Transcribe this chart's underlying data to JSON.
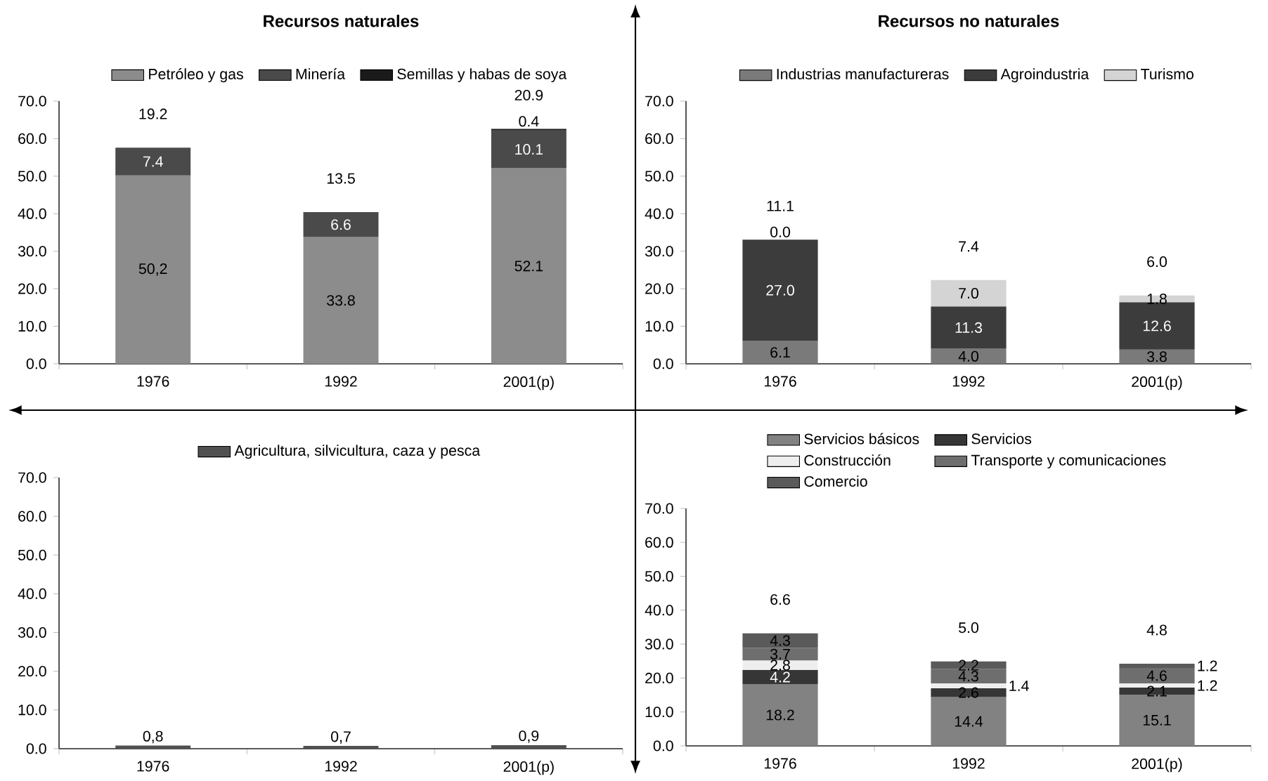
{
  "chart_data": [
    {
      "type": "bar",
      "title": "Recursos naturales",
      "stacked": true,
      "legend": "top",
      "categories": [
        "1976",
        "1992",
        "2001(p)"
      ],
      "ylim": [
        0,
        70
      ],
      "yticks": [
        {
          "value": 0,
          "label": "0.0"
        },
        {
          "value": 10,
          "label": "10.0"
        },
        {
          "value": 20,
          "label": "20.0"
        },
        {
          "value": 30,
          "label": "30.0"
        },
        {
          "value": 40,
          "label": "40.0"
        },
        {
          "value": 50,
          "label": "50.0"
        },
        {
          "value": 60,
          "label": "60.0"
        },
        {
          "value": 70,
          "label": "70.0"
        }
      ],
      "series": [
        {
          "name": "Petróleo y gas",
          "color": "#8c8c8c",
          "values": [
            50.2,
            33.8,
            52.1
          ],
          "value_labels": [
            "50,2",
            "33.8",
            "52.1"
          ]
        },
        {
          "name": "Minería",
          "color": "#4a4a4a",
          "values": [
            7.4,
            6.6,
            10.1
          ],
          "value_labels": [
            "7.4",
            "6.6",
            "10.1"
          ]
        },
        {
          "name": "Semillas y habas de soya",
          "color": "#1a1a1a",
          "values": [
            null,
            null,
            0.4
          ],
          "value_labels": [
            null,
            null,
            "0.4"
          ]
        }
      ],
      "annotations": [
        "19.2",
        "13.5",
        "20.9"
      ]
    },
    {
      "type": "bar",
      "title": "Recursos no naturales",
      "stacked": true,
      "legend": "top",
      "categories": [
        "1976",
        "1992",
        "2001(p)"
      ],
      "ylim": [
        0,
        70
      ],
      "yticks": [
        {
          "value": 0,
          "label": "0.0"
        },
        {
          "value": 10,
          "label": "10.0"
        },
        {
          "value": 20,
          "label": "20.0"
        },
        {
          "value": 30,
          "label": "30.0"
        },
        {
          "value": 40,
          "label": "40.0"
        },
        {
          "value": 50,
          "label": "50.0"
        },
        {
          "value": 60,
          "label": "60.0"
        },
        {
          "value": 70,
          "label": "70.0"
        }
      ],
      "series": [
        {
          "name": "Industrias manufactureras",
          "color": "#7a7a7a",
          "values": [
            6.1,
            4.0,
            3.8
          ],
          "value_labels": [
            "6.1",
            "4.0",
            "3.8"
          ]
        },
        {
          "name": "Agroindustria",
          "color": "#3c3c3c",
          "values": [
            27.0,
            11.3,
            12.6
          ],
          "value_labels": [
            "27.0",
            "11.3",
            "12.6"
          ]
        },
        {
          "name": "Turismo",
          "color": "#d4d4d4",
          "values": [
            0.0,
            7.0,
            1.8
          ],
          "value_labels": [
            "0.0",
            "7.0",
            "1.8"
          ]
        }
      ],
      "annotations": [
        "11.1",
        "7.4",
        "6.0"
      ]
    },
    {
      "type": "bar",
      "stacked": true,
      "legend": "top",
      "categories": [
        "1976",
        "1992",
        "2001(p)"
      ],
      "ylim": [
        0,
        70
      ],
      "yticks": [
        {
          "value": 0,
          "label": "0.0"
        },
        {
          "value": 10,
          "label": "10.0"
        },
        {
          "value": 20,
          "label": "20.0"
        },
        {
          "value": 30,
          "label": "30.0"
        },
        {
          "value": 40,
          "label": "40.0"
        },
        {
          "value": 50,
          "label": "50.0"
        },
        {
          "value": 60,
          "label": "60.0"
        },
        {
          "value": 70,
          "label": "70.0"
        }
      ],
      "series": [
        {
          "name": "Agricultura, silvicultura, caza y pesca",
          "color": "#505050",
          "values": [
            0.8,
            0.7,
            0.9
          ],
          "value_labels": [
            "0,8",
            "0,7",
            "0,9"
          ]
        }
      ]
    },
    {
      "type": "bar",
      "stacked": true,
      "legend": "top",
      "categories": [
        "1976",
        "1992",
        "2001(p)"
      ],
      "ylim": [
        0,
        70
      ],
      "yticks": [
        {
          "value": 0,
          "label": "0.0"
        },
        {
          "value": 10,
          "label": "10.0"
        },
        {
          "value": 20,
          "label": "20.0"
        },
        {
          "value": 30,
          "label": "30.0"
        },
        {
          "value": 40,
          "label": "40.0"
        },
        {
          "value": 50,
          "label": "50.0"
        },
        {
          "value": 60,
          "label": "60.0"
        },
        {
          "value": 70,
          "label": "70.0"
        }
      ],
      "series": [
        {
          "name": "Servicios básicos",
          "color": "#828282",
          "values": [
            18.2,
            14.4,
            15.1
          ],
          "value_labels": [
            "18.2",
            "14.4",
            "15.1"
          ]
        },
        {
          "name": "Servicios",
          "color": "#363636",
          "values": [
            4.2,
            2.6,
            2.1
          ],
          "value_labels": [
            "4.2",
            "2.6",
            "2.1"
          ]
        },
        {
          "name": "Construcción",
          "color": "#eeeeee",
          "values": [
            2.8,
            1.4,
            1.2
          ],
          "value_labels": [
            "2.8",
            "1.4",
            "1.2"
          ]
        },
        {
          "name": "Transporte y comunicaciones",
          "color": "#6e6e6e",
          "values": [
            3.7,
            4.3,
            4.6
          ],
          "value_labels": [
            "3.7",
            "4.3",
            "4.6"
          ]
        },
        {
          "name": "Comercio",
          "color": "#5a5a5a",
          "values": [
            4.3,
            2.2,
            1.2
          ],
          "value_labels": [
            "4.3",
            "2.2",
            "1.2"
          ]
        }
      ],
      "annotations": [
        "6.6",
        "5.0",
        "4.8"
      ]
    }
  ]
}
